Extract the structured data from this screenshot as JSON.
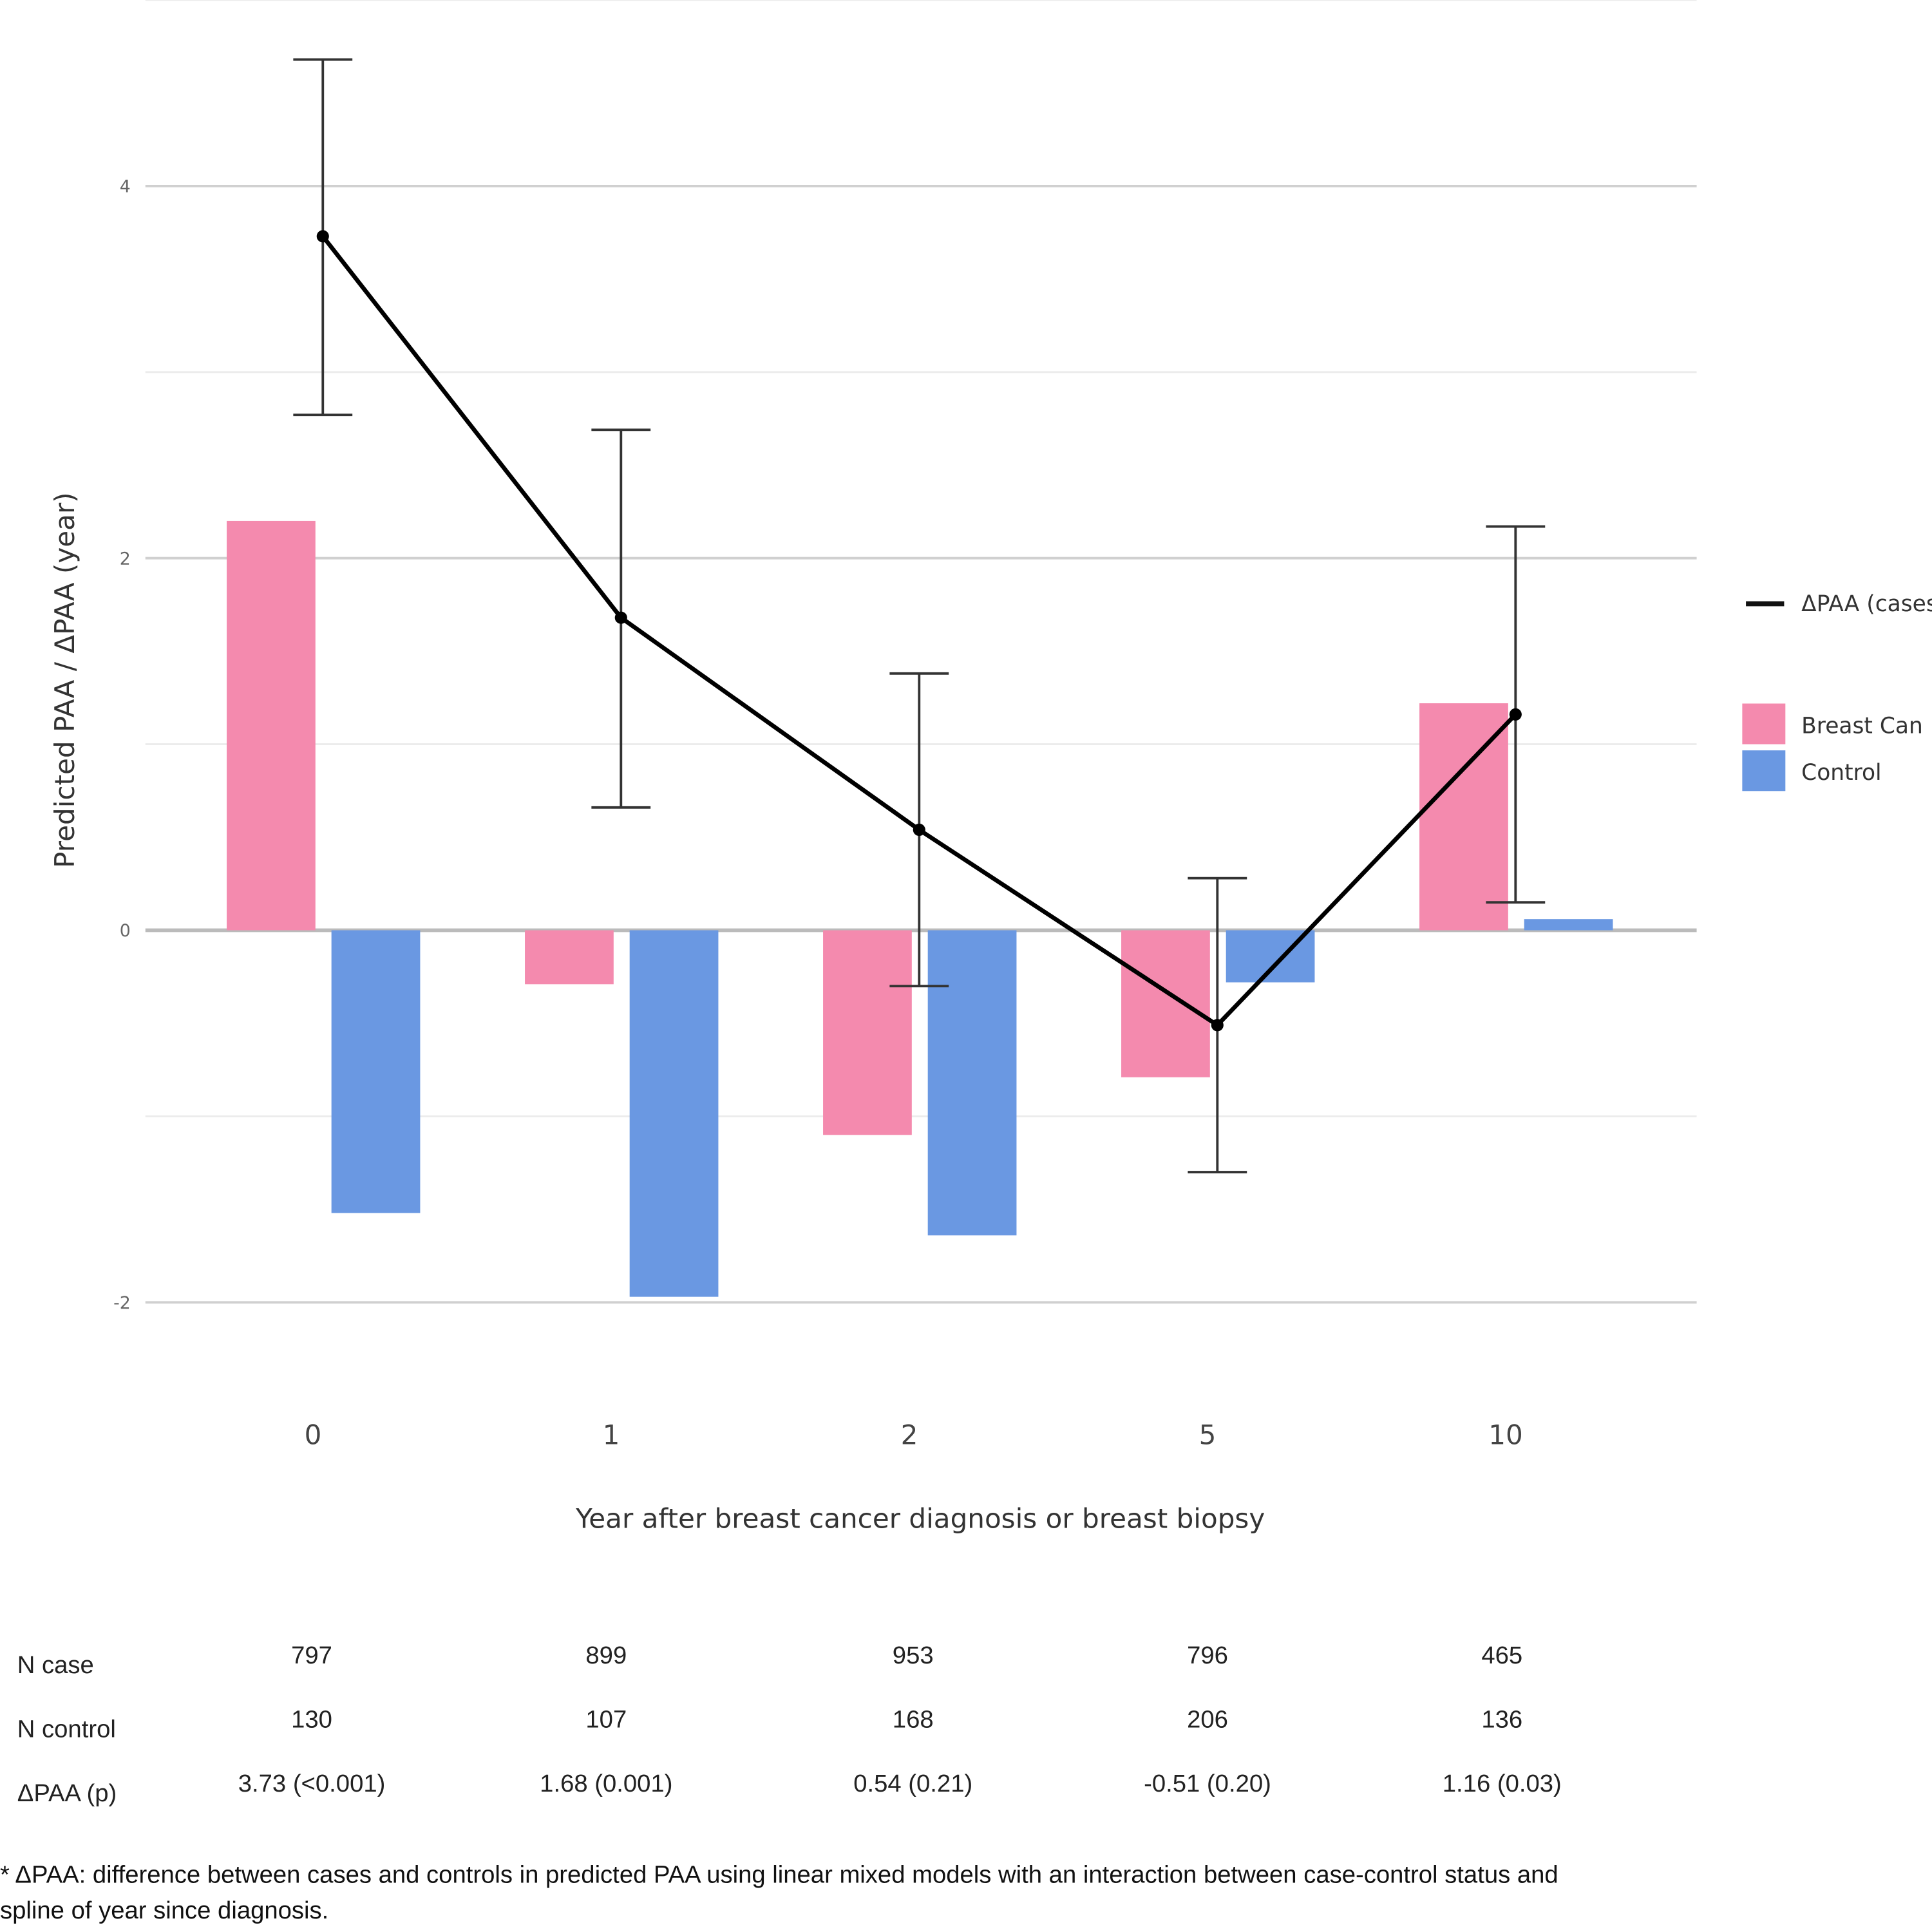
{
  "chart_data": {
    "type": "bar+line",
    "categories": [
      "0",
      "1",
      "2",
      "5",
      "10"
    ],
    "ylabel": "Predicted PAA / ΔPAA (year)",
    "xlabel": "Year after breast cancer diagnosis or breast biopsy",
    "ylim": [
      -2.5,
      5
    ],
    "yticks": [
      -2,
      0,
      2,
      4
    ],
    "ytick_labels": [
      "-2",
      "0",
      "2",
      "4"
    ],
    "grid": true,
    "legend_position": "right",
    "series": [
      {
        "name": "ΔPAA (cases",
        "kind": "line",
        "color": "#000000",
        "values": [
          3.73,
          1.68,
          0.54,
          -0.51,
          1.16
        ],
        "ci_lower": [
          2.77,
          0.66,
          -0.3,
          -1.3,
          0.15
        ],
        "ci_upper": [
          4.68,
          2.69,
          1.38,
          0.28,
          2.17
        ]
      },
      {
        "name": "Breast Can",
        "kind": "bar",
        "color": "#f48aae",
        "values": [
          2.2,
          -0.29,
          -1.1,
          -0.79,
          1.22
        ]
      },
      {
        "name": "Control",
        "kind": "bar",
        "color": "#6a98e2",
        "values": [
          -1.52,
          -1.97,
          -1.64,
          -0.28,
          0.06
        ]
      }
    ]
  },
  "table": {
    "rows": [
      {
        "label": "N case",
        "values": [
          "797",
          "899",
          "953",
          "796",
          "465"
        ]
      },
      {
        "label": "N control",
        "values": [
          "130",
          "107",
          "168",
          "206",
          "136"
        ]
      },
      {
        "label": "ΔPAA (p)",
        "values": [
          "3.73 (<0.001)",
          "1.68 (0.001)",
          "0.54 (0.21)",
          "-0.51 (0.20)",
          "1.16 (0.03)"
        ]
      }
    ]
  },
  "footnote": {
    "line1": "* ΔPAA: difference between cases and controls in predicted PAA using linear mixed models with an interaction between case-control status and",
    "line2": "spline of year since diagnosis."
  }
}
